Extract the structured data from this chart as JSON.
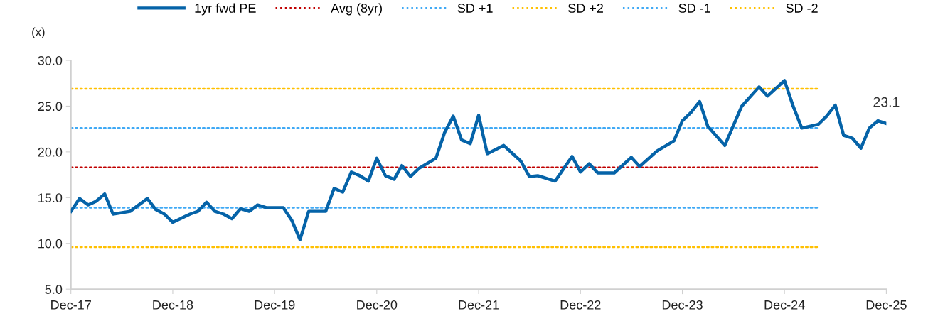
{
  "chart_data": {
    "type": "line",
    "ylabel": "(x)",
    "legend": "top",
    "grid": false,
    "x": [
      "2017-12",
      "2018-01",
      "2018-02",
      "2018-03",
      "2018-04",
      "2018-05",
      "2018-07",
      "2018-09",
      "2018-10",
      "2018-11",
      "2018-12",
      "2019-02",
      "2019-03",
      "2019-04",
      "2019-05",
      "2019-06",
      "2019-07",
      "2019-08",
      "2019-09",
      "2019-10",
      "2019-11",
      "2020-01",
      "2020-02",
      "2020-03",
      "2020-04",
      "2020-05",
      "2020-06",
      "2020-07",
      "2020-08",
      "2020-09",
      "2020-10",
      "2020-11",
      "2020-12",
      "2021-01",
      "2021-02",
      "2021-03",
      "2021-04",
      "2021-05",
      "2021-07",
      "2021-08",
      "2021-09",
      "2021-10",
      "2021-11",
      "2021-12",
      "2022-01",
      "2022-03",
      "2022-05",
      "2022-06",
      "2022-07",
      "2022-09",
      "2022-11",
      "2022-12",
      "2023-01",
      "2023-02",
      "2023-04",
      "2023-06",
      "2023-07",
      "2023-09",
      "2023-11",
      "2023-12",
      "2024-01",
      "2024-02",
      "2024-03",
      "2024-05",
      "2024-07",
      "2024-09",
      "2024-10",
      "2024-12",
      "2025-01",
      "2025-02",
      "2025-04",
      "2025-05",
      "2025-06",
      "2025-07",
      "2025-08",
      "2025-09",
      "2025-10",
      "2025-11",
      "2025-12"
    ],
    "series": [
      {
        "name": "1yr fwd PE",
        "color": "#0563a8",
        "line_style": "solid",
        "values": [
          13.5,
          14.9,
          14.2,
          14.6,
          15.4,
          13.2,
          13.5,
          14.9,
          13.7,
          13.2,
          12.3,
          13.2,
          13.5,
          14.5,
          13.5,
          13.2,
          12.7,
          13.8,
          13.5,
          14.2,
          13.9,
          13.9,
          12.5,
          10.4,
          13.5,
          13.5,
          13.5,
          16.0,
          15.6,
          17.8,
          17.4,
          16.8,
          19.3,
          17.4,
          17.0,
          18.5,
          17.3,
          18.2,
          19.3,
          22.1,
          23.9,
          21.3,
          20.9,
          24.0,
          19.8,
          20.7,
          19.0,
          17.3,
          17.4,
          16.8,
          19.5,
          17.8,
          18.7,
          17.7,
          17.7,
          19.4,
          18.4,
          20.1,
          21.2,
          23.4,
          24.3,
          25.5,
          22.8,
          20.7,
          25.0,
          27.1,
          26.1,
          27.8,
          25.0,
          22.6,
          23.0,
          23.9,
          25.1,
          21.8,
          21.5,
          20.4,
          22.6,
          23.4,
          23.1
        ]
      },
      {
        "name": "Avg (8yr)",
        "color": "#c00000",
        "line_style": "dotted",
        "x": [
          "2017-12",
          "2025-04"
        ],
        "values": [
          18.3,
          18.3
        ]
      },
      {
        "name": "SD +1",
        "color": "#3fa9f5",
        "line_style": "dotted",
        "x": [
          "2017-12",
          "2025-04"
        ],
        "values": [
          22.6,
          22.6
        ]
      },
      {
        "name": "SD +2",
        "color": "#ffc000",
        "line_style": "dotted",
        "x": [
          "2017-12",
          "2025-04"
        ],
        "values": [
          26.9,
          26.9
        ]
      },
      {
        "name": "SD -1",
        "color": "#3fa9f5",
        "line_style": "dotted",
        "x": [
          "2017-12",
          "2025-04"
        ],
        "values": [
          13.9,
          13.9
        ]
      },
      {
        "name": "SD -2",
        "color": "#ffc000",
        "line_style": "dotted",
        "x": [
          "2017-12",
          "2025-04"
        ],
        "values": [
          9.6,
          9.6
        ]
      }
    ],
    "annotations": [
      {
        "text": "23.1",
        "x": "2025-12",
        "y": 23.1
      }
    ],
    "xlim": [
      "2017-12",
      "2025-12"
    ],
    "xticks": [
      {
        "value": "2017-12",
        "label": "Dec-17"
      },
      {
        "value": "2018-12",
        "label": "Dec-18"
      },
      {
        "value": "2019-12",
        "label": "Dec-19"
      },
      {
        "value": "2020-12",
        "label": "Dec-20"
      },
      {
        "value": "2021-12",
        "label": "Dec-21"
      },
      {
        "value": "2022-12",
        "label": "Dec-22"
      },
      {
        "value": "2023-12",
        "label": "Dec-23"
      },
      {
        "value": "2024-12",
        "label": "Dec-24"
      },
      {
        "value": "2025-12",
        "label": "Dec-25"
      }
    ],
    "ylim": [
      5,
      30
    ],
    "yticks": [
      {
        "value": 5,
        "label": "5.0"
      },
      {
        "value": 10,
        "label": "10.0"
      },
      {
        "value": 15,
        "label": "15.0"
      },
      {
        "value": 20,
        "label": "20.0"
      },
      {
        "value": 25,
        "label": "25.0"
      },
      {
        "value": 30,
        "label": "30.0"
      }
    ]
  }
}
